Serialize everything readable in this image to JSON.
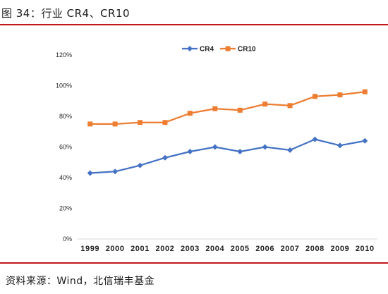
{
  "figure": {
    "caption": "图 34：行业 CR4、CR10",
    "source": "资料来源：Wind，北信瑞丰基金"
  },
  "colors": {
    "cr4": "#4472c4",
    "cr10": "#ed7d31",
    "rule": "#c0171b"
  },
  "chart_data": {
    "type": "line",
    "title": "",
    "xlabel": "",
    "ylabel": "",
    "categories": [
      "1999",
      "2000",
      "2001",
      "2002",
      "2003",
      "2004",
      "2005",
      "2006",
      "2007",
      "2008",
      "2009",
      "2010"
    ],
    "y_ticks": [
      "0%",
      "20%",
      "40%",
      "60%",
      "80%",
      "100%",
      "120%"
    ],
    "ylim": [
      0,
      120
    ],
    "grid": false,
    "legend_position": "top",
    "series": [
      {
        "name": "CR4",
        "marker": "diamond",
        "color": "#4472c4",
        "values": [
          43,
          44,
          48,
          53,
          57,
          60,
          57,
          60,
          58,
          65,
          61,
          64
        ]
      },
      {
        "name": "CR10",
        "marker": "square",
        "color": "#ed7d31",
        "values": [
          75,
          75,
          76,
          76,
          82,
          85,
          84,
          88,
          87,
          93,
          94,
          96
        ]
      }
    ]
  }
}
